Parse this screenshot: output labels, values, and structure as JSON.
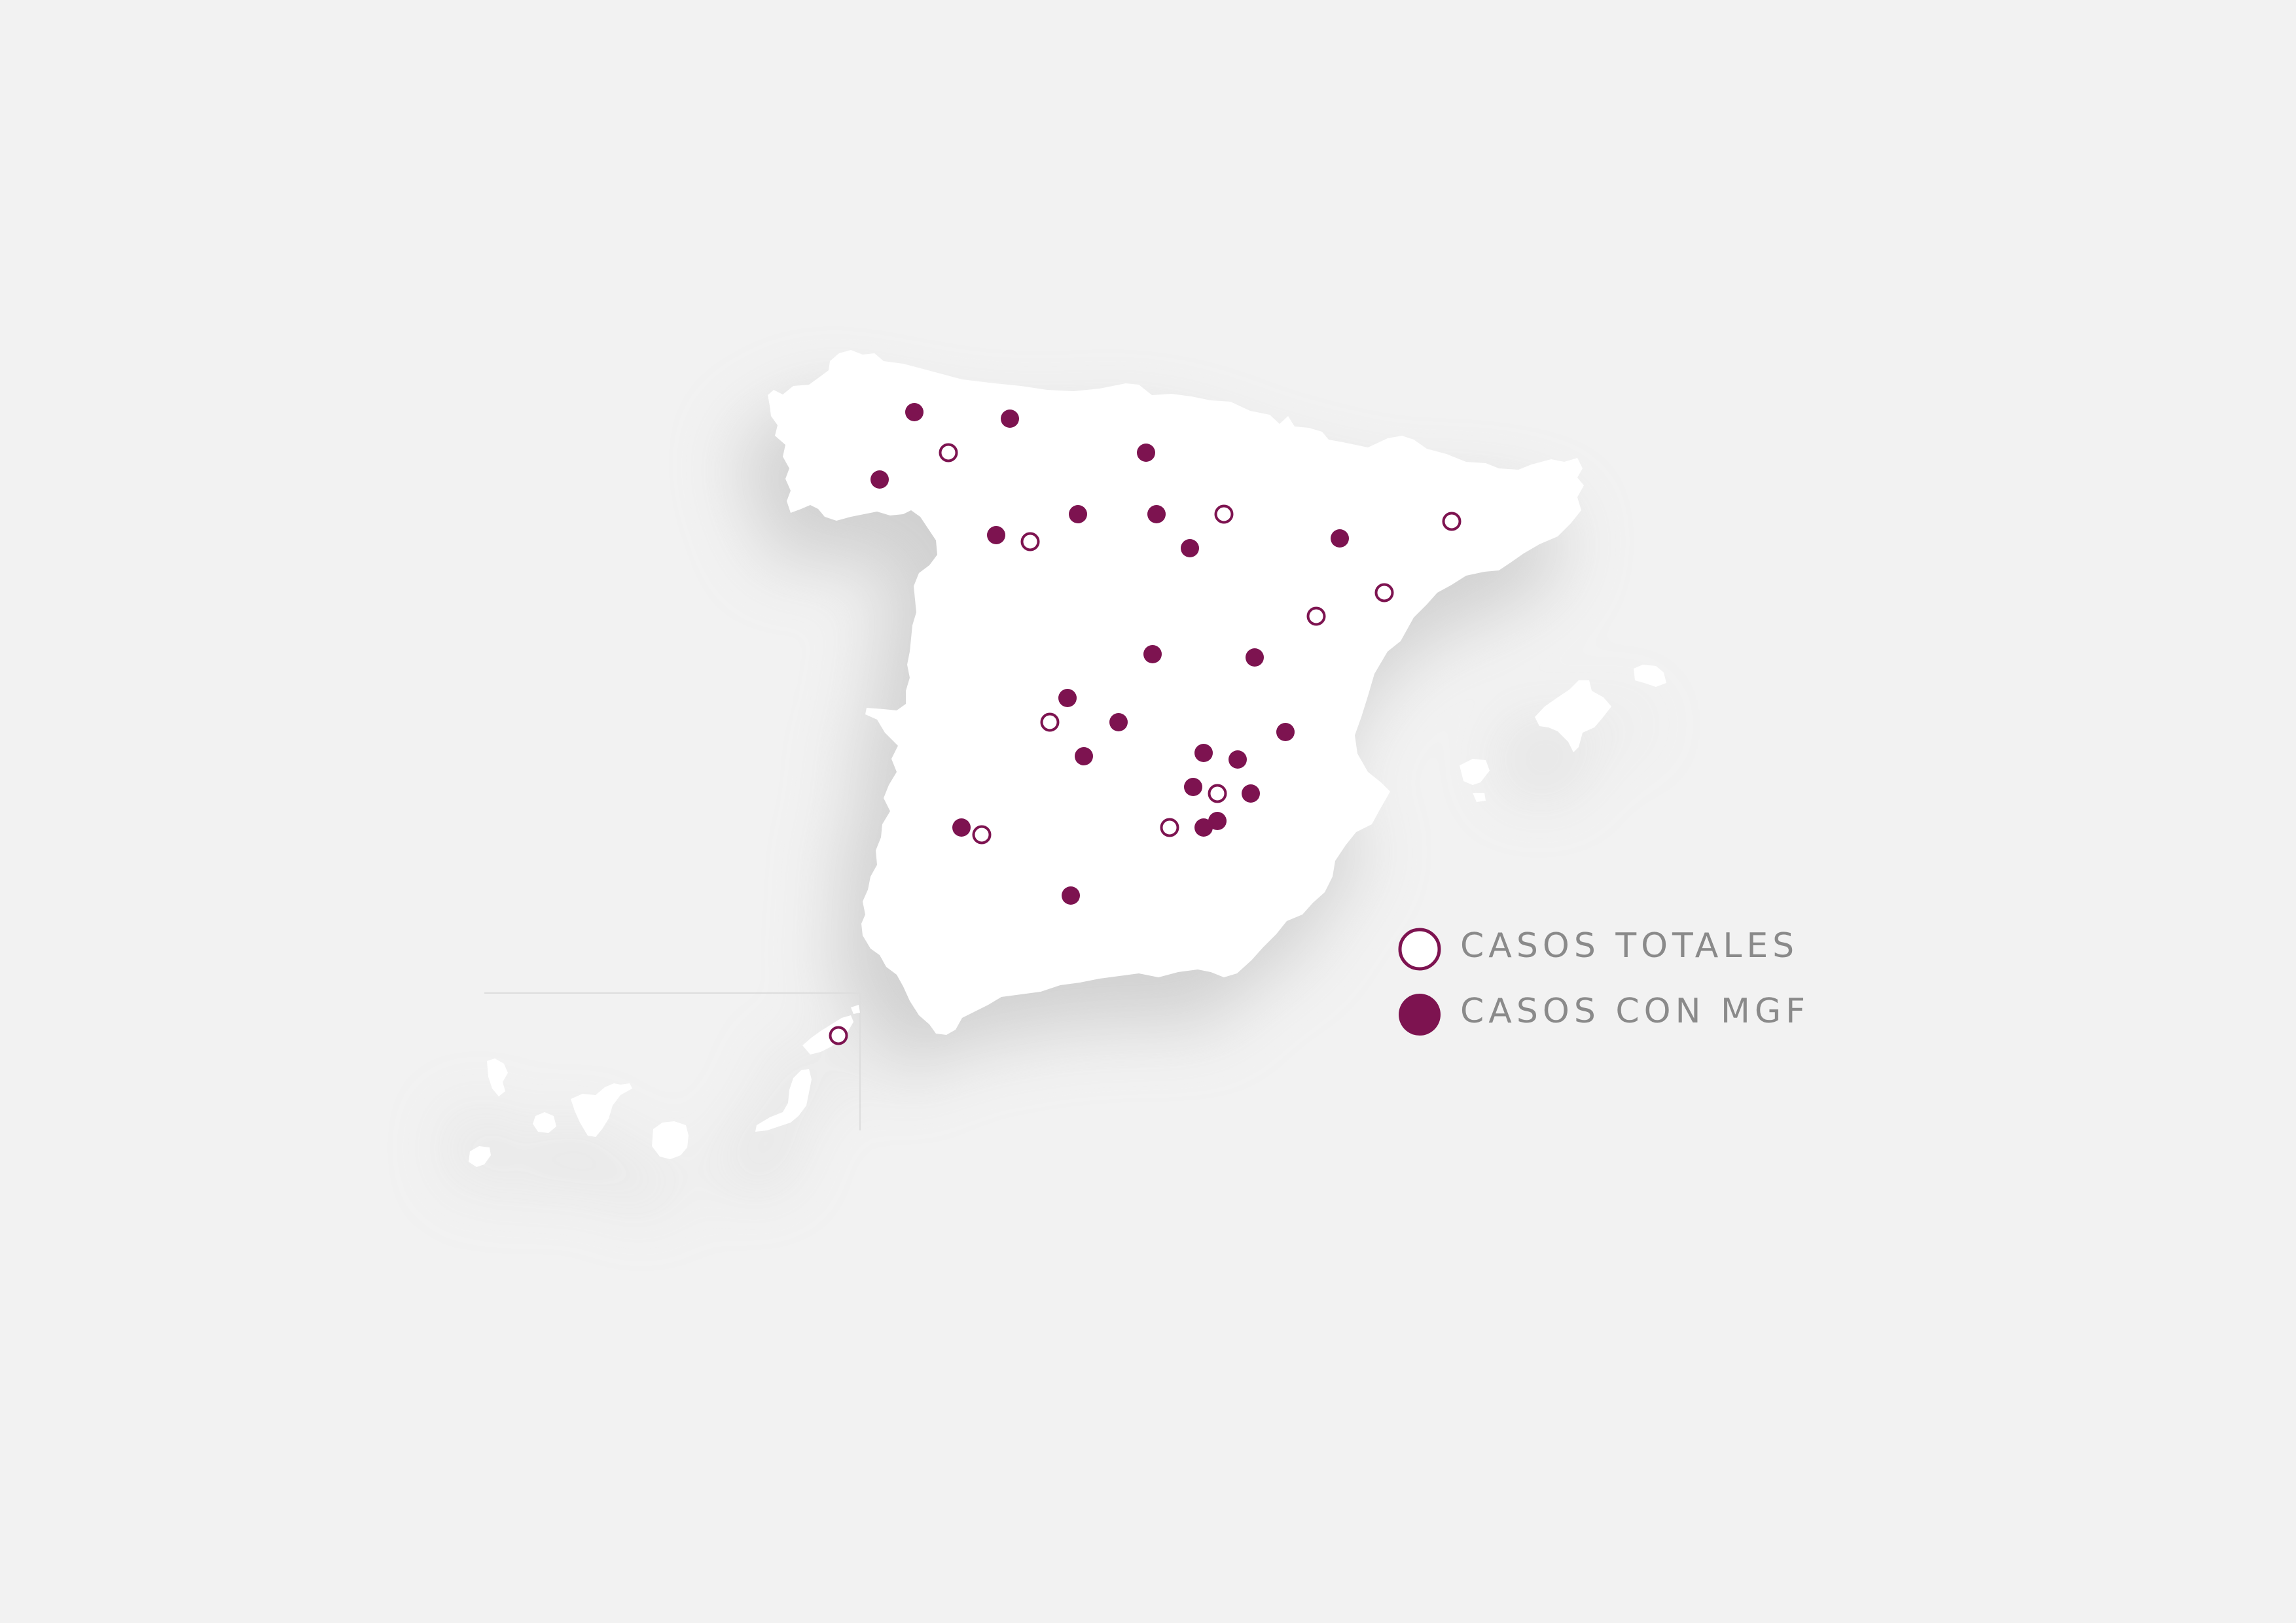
{
  "map": {
    "region": "Spain",
    "colors": {
      "background": "#f2f2f2",
      "land": "#ffffff",
      "accent": "#7d1350",
      "legend_text": "#8a8a8a",
      "inset_border": "#dddddd"
    }
  },
  "legend": {
    "items": [
      {
        "label": "CASOS TOTALES",
        "marker": "open-circle"
      },
      {
        "label": "CASOS CON MGF",
        "marker": "filled-circle"
      }
    ]
  },
  "markers": {
    "mgf_count": 28,
    "totales_count": 13
  }
}
